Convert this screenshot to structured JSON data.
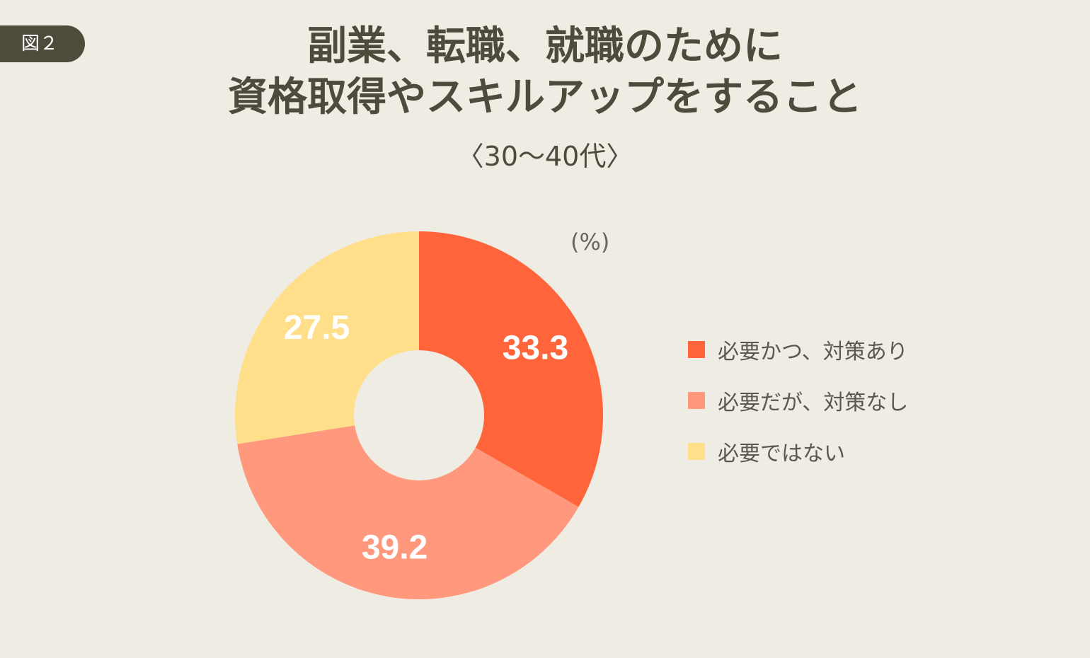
{
  "figure_label": "図２",
  "title_lines": [
    "副業、転職、就職のために",
    "資格取得やスキルアップをすること"
  ],
  "subtitle": "〈30〜40代〉",
  "unit_label": "(%)",
  "colors": {
    "background": "#efece3",
    "badge": "#4e4a3c",
    "title": "#4e4a3c"
  },
  "chart_data": {
    "type": "pie",
    "donut": true,
    "categories": [
      "必要かつ、対策あり",
      "必要だが、対策なし",
      "必要ではない"
    ],
    "values": [
      33.3,
      39.2,
      27.5
    ],
    "value_labels": [
      "33.3",
      "39.2",
      "27.5"
    ],
    "colors": [
      "#ff643a",
      "#ff987c",
      "#ffdf8a"
    ],
    "start": "12 o'clock",
    "direction": "clockwise",
    "unit": "%",
    "legend_position": "right"
  }
}
